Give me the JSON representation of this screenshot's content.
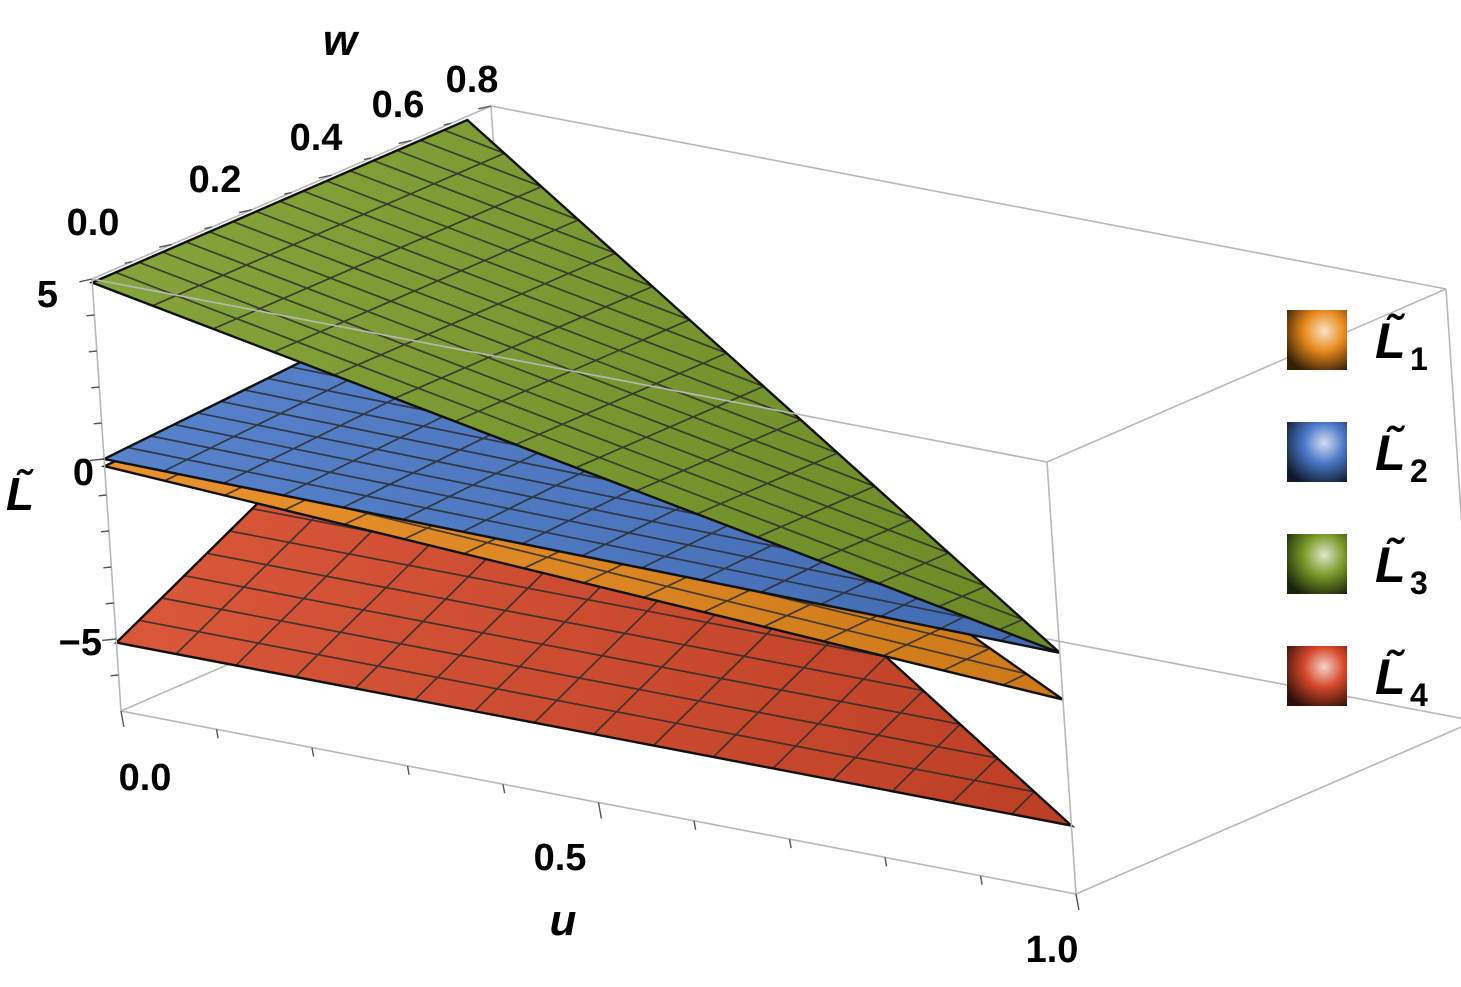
{
  "chart_data": {
    "type": "surface3d",
    "title": "",
    "xlabel": "u",
    "ylabel": "w",
    "zlabel": "L̃",
    "xlim": [
      0.0,
      1.0
    ],
    "ylim": [
      0.0,
      1.0
    ],
    "zlim": [
      -7,
      5
    ],
    "x_ticks": [
      "0.0",
      "0.5",
      "1.0"
    ],
    "y_ticks": [
      "0.0",
      "0.2",
      "0.4",
      "0.6",
      "0.8"
    ],
    "z_ticks": [
      "5",
      "0",
      "−5"
    ],
    "region": "u + w ≤ 1",
    "grid": true,
    "legend_position": "right",
    "series": [
      {
        "name": "L̃",
        "subscript": "1",
        "color": "#e8891c",
        "values": [
          {
            "u": 0.0,
            "w": 0.0,
            "z": -0.2
          },
          {
            "u": 0.0,
            "w": 0.94,
            "z": 0.2
          },
          {
            "u": 1.0,
            "w": 0.0,
            "z": -1.6
          }
        ]
      },
      {
        "name": "L̃",
        "subscript": "2",
        "color": "#4a78c8",
        "values": [
          {
            "u": 0.0,
            "w": 0.0,
            "z": 0.0
          },
          {
            "u": 0.0,
            "w": 0.94,
            "z": 0.6
          },
          {
            "u": 1.0,
            "w": 0.0,
            "z": -0.3
          }
        ]
      },
      {
        "name": "L̃",
        "subscript": "3",
        "color": "#7a9c2a",
        "values": [
          {
            "u": 0.0,
            "w": 0.0,
            "z": 4.9
          },
          {
            "u": 0.0,
            "w": 0.94,
            "z": 4.9
          },
          {
            "u": 1.0,
            "w": 0.0,
            "z": -0.3
          }
        ]
      },
      {
        "name": "L̃",
        "subscript": "4",
        "color": "#d6482a",
        "values": [
          {
            "u": 0.0,
            "w": 0.0,
            "z": -5.1
          },
          {
            "u": 0.0,
            "w": 0.94,
            "z": 0.3
          },
          {
            "u": 1.0,
            "w": 0.0,
            "z": -5.1
          }
        ]
      }
    ]
  }
}
